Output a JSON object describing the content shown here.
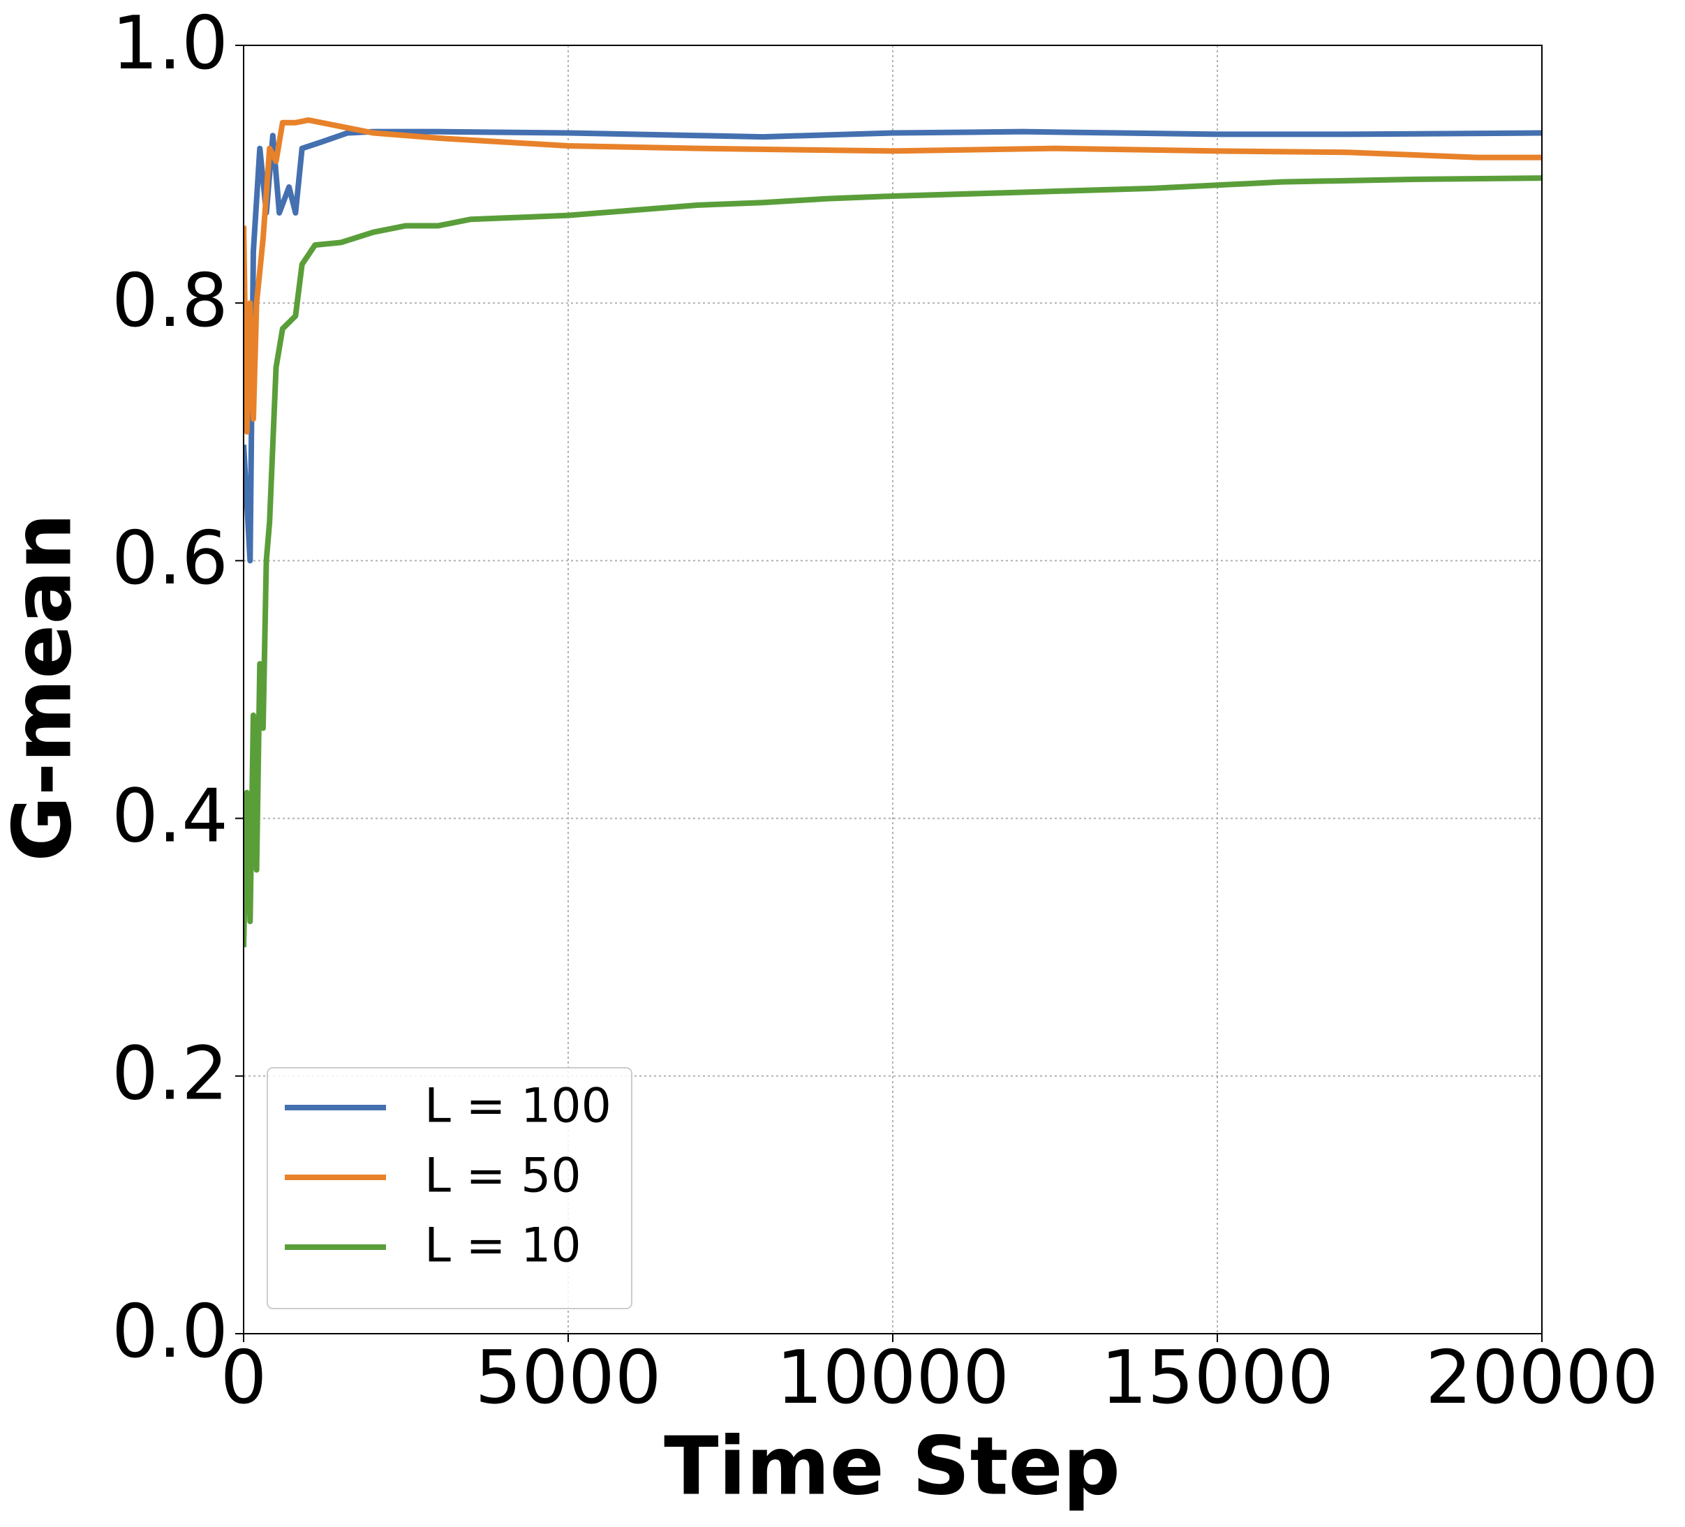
{
  "chart_data": {
    "type": "line",
    "xlabel": "Time Step",
    "ylabel": "G-mean",
    "xlim": [
      0,
      20000
    ],
    "ylim": [
      0,
      1
    ],
    "xticks": [
      0,
      5000,
      10000,
      15000,
      20000
    ],
    "yticks": [
      {
        "value": 0,
        "label": "0.0"
      },
      0.2,
      0.4,
      0.6,
      0.8,
      {
        "value": 1,
        "label": "1.0"
      }
    ],
    "grid": true,
    "legend": "lower left",
    "series": [
      {
        "name": "L = 100",
        "color": "#4470b0",
        "x": [
          0,
          100,
          150,
          250,
          350,
          450,
          550,
          700,
          800,
          900,
          1200,
          1600,
          2000,
          3000,
          5000,
          7000,
          8000,
          10000,
          12000,
          15000,
          17000,
          20000
        ],
        "values": [
          0.69,
          0.6,
          0.84,
          0.92,
          0.87,
          0.93,
          0.87,
          0.89,
          0.87,
          0.92,
          0.925,
          0.932,
          0.933,
          0.933,
          0.932,
          0.93,
          0.929,
          0.932,
          0.933,
          0.931,
          0.931,
          0.932
        ]
      },
      {
        "name": "L = 50",
        "color": "#e8822a",
        "x": [
          0,
          50,
          100,
          150,
          200,
          300,
          400,
          500,
          600,
          800,
          1000,
          1500,
          2000,
          3000,
          5000,
          7000,
          10000,
          12500,
          15000,
          17000,
          19000,
          20000
        ],
        "values": [
          0.86,
          0.7,
          0.8,
          0.71,
          0.8,
          0.85,
          0.92,
          0.91,
          0.94,
          0.94,
          0.942,
          0.937,
          0.932,
          0.928,
          0.922,
          0.92,
          0.918,
          0.92,
          0.918,
          0.917,
          0.913,
          0.913
        ]
      },
      {
        "name": "L = 10",
        "color": "#5a9e3a",
        "x": [
          0,
          50,
          100,
          150,
          200,
          250,
          300,
          350,
          400,
          500,
          600,
          800,
          900,
          1100,
          1500,
          2000,
          2500,
          3000,
          3500,
          4000,
          5000,
          6000,
          7000,
          8000,
          9000,
          10000,
          12000,
          14000,
          16000,
          18000,
          20000
        ],
        "values": [
          0.3,
          0.42,
          0.32,
          0.48,
          0.36,
          0.52,
          0.47,
          0.6,
          0.63,
          0.75,
          0.78,
          0.79,
          0.83,
          0.845,
          0.847,
          0.855,
          0.86,
          0.86,
          0.865,
          0.866,
          0.868,
          0.872,
          0.876,
          0.878,
          0.881,
          0.883,
          0.886,
          0.889,
          0.894,
          0.896,
          0.897
        ]
      }
    ]
  }
}
